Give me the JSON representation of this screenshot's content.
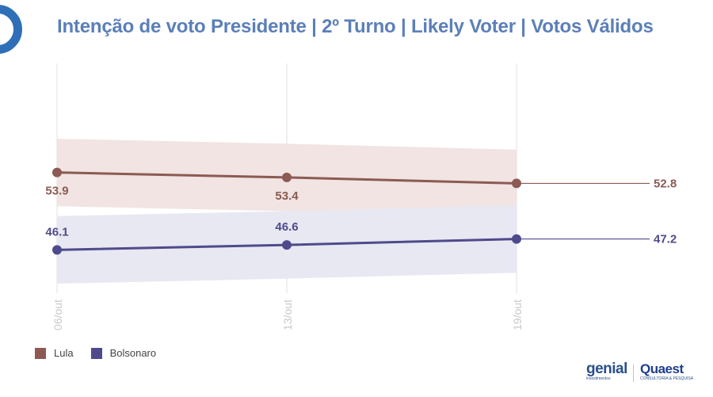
{
  "title": "Intenção de voto Presidente | 2º Turno | Likely Voter | Votos Válidos",
  "chart_data": {
    "type": "line",
    "title": "Intenção de voto Presidente | 2º Turno | Likely Voter | Votos Válidos",
    "x": [
      "06/out",
      "13/out",
      "19/out"
    ],
    "ylim": [
      30,
      70
    ],
    "legend_position": "bottom-left",
    "series": [
      {
        "name": "Lula",
        "color": "#8c5a52",
        "band_color": "#f1e4e3",
        "values": [
          53.9,
          53.4,
          52.8
        ],
        "band_upper": [
          57.3,
          56.8,
          56.2
        ],
        "band_lower": [
          50.5,
          50.0,
          49.4
        ],
        "labels": [
          "53.9",
          "53.4",
          "52.8"
        ]
      },
      {
        "name": "Bolsonaro",
        "color": "#4f4a8c",
        "band_color": "#e7e8f1",
        "values": [
          46.1,
          46.6,
          47.2
        ],
        "band_upper": [
          49.5,
          50.0,
          50.6
        ],
        "band_lower": [
          42.7,
          43.2,
          43.8
        ],
        "labels": [
          "46.1",
          "46.6",
          "47.2"
        ]
      }
    ]
  },
  "legend": [
    {
      "label": "Lula",
      "color": "#8c5a52"
    },
    {
      "label": "Bolsonaro",
      "color": "#4f4a8c"
    }
  ],
  "brand": {
    "genial_name": "genial",
    "genial_sub": "investimentos",
    "quaest_name": "Quaest",
    "quaest_sub": "CONSULTORIA & PESQUISA"
  },
  "colors": {
    "title": "#5b7fb9",
    "logo_ring": "#2f6fb7"
  }
}
